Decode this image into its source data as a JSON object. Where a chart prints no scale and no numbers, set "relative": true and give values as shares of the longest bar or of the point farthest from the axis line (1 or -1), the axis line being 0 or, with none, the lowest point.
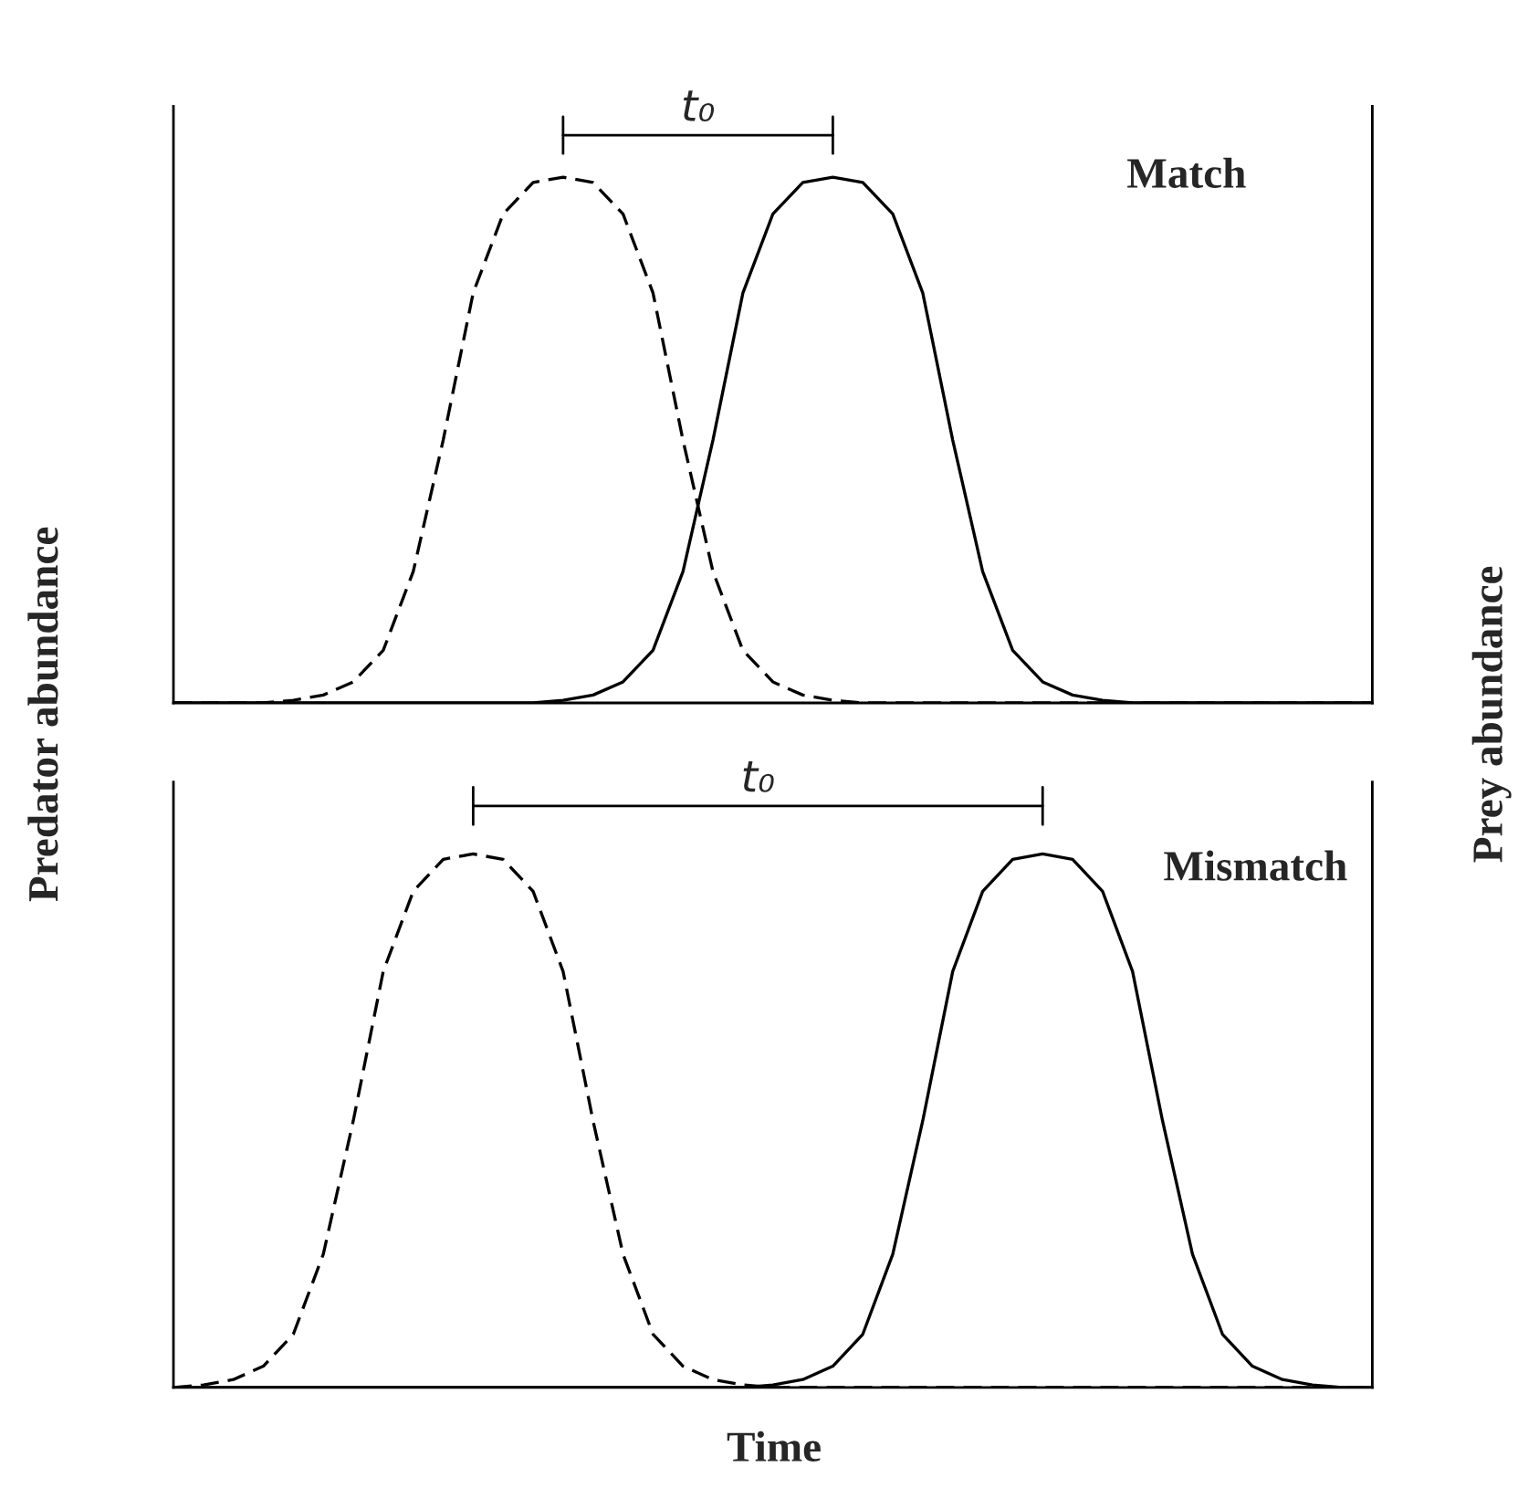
{
  "chart_data": [
    {
      "type": "line",
      "relative": true,
      "ylabel": "Predator abundance",
      "y2label": "Prey abundance",
      "categories": [
        null,
        null,
        null,
        null,
        null,
        null,
        null,
        null,
        null,
        null,
        null,
        null,
        null,
        null,
        null,
        null,
        null,
        null,
        null,
        null,
        null,
        null,
        null,
        null,
        null,
        null,
        null,
        null,
        null,
        null,
        null,
        null,
        null,
        null,
        null,
        null,
        null,
        null,
        null,
        null,
        null
      ],
      "annotations": [
        "t₀",
        "Match"
      ],
      "series": [
        {
          "color": "#000000",
          "line_style": "dashed",
          "values": [
            0,
            0,
            0,
            0,
            0.005,
            0.015,
            0.04,
            0.1,
            0.25,
            0.5,
            0.78,
            0.93,
            0.99,
            1,
            0.99,
            0.93,
            0.78,
            0.5,
            0.25,
            0.1,
            0.04,
            0.015,
            0.005,
            0,
            0,
            0,
            0,
            0,
            0,
            0,
            0,
            0,
            0,
            0,
            0,
            0,
            0,
            0,
            0,
            0,
            0
          ]
        },
        {
          "color": "#000000",
          "line_style": "solid",
          "values": [
            0,
            0,
            0,
            0,
            0,
            0,
            0,
            0,
            0,
            0,
            0,
            0,
            0,
            0.005,
            0.015,
            0.04,
            0.1,
            0.25,
            0.5,
            0.78,
            0.93,
            0.99,
            1,
            0.99,
            0.93,
            0.78,
            0.5,
            0.25,
            0.1,
            0.04,
            0.015,
            0.005,
            0,
            0,
            0,
            0,
            0,
            0,
            0,
            0,
            0
          ]
        }
      ]
    },
    {
      "type": "line",
      "relative": true,
      "xlabel": "Time",
      "categories": [
        null,
        null,
        null,
        null,
        null,
        null,
        null,
        null,
        null,
        null,
        null,
        null,
        null,
        null,
        null,
        null,
        null,
        null,
        null,
        null,
        null,
        null,
        null,
        null,
        null,
        null,
        null,
        null,
        null,
        null,
        null,
        null,
        null,
        null,
        null,
        null,
        null,
        null,
        null,
        null,
        null
      ],
      "annotations": [
        "t₀",
        "Mismatch"
      ],
      "series": [
        {
          "color": "#000000",
          "line_style": "dashed",
          "values": [
            0,
            0.005,
            0.015,
            0.04,
            0.1,
            0.25,
            0.5,
            0.78,
            0.93,
            0.99,
            1,
            0.99,
            0.93,
            0.78,
            0.5,
            0.25,
            0.1,
            0.04,
            0.015,
            0.005,
            0,
            0,
            0,
            0,
            0,
            0,
            0,
            0,
            0,
            0,
            0,
            0,
            0,
            0,
            0,
            0,
            0,
            0,
            0,
            0,
            0
          ]
        },
        {
          "color": "#000000",
          "line_style": "solid",
          "values": [
            0,
            0,
            0,
            0,
            0,
            0,
            0,
            0,
            0,
            0,
            0,
            0,
            0,
            0,
            0,
            0,
            0,
            0,
            0,
            0,
            0.005,
            0.015,
            0.04,
            0.1,
            0.25,
            0.5,
            0.78,
            0.93,
            0.99,
            1,
            0.99,
            0.93,
            0.78,
            0.5,
            0.25,
            0.1,
            0.04,
            0.015,
            0.005,
            0,
            0
          ]
        }
      ]
    }
  ]
}
